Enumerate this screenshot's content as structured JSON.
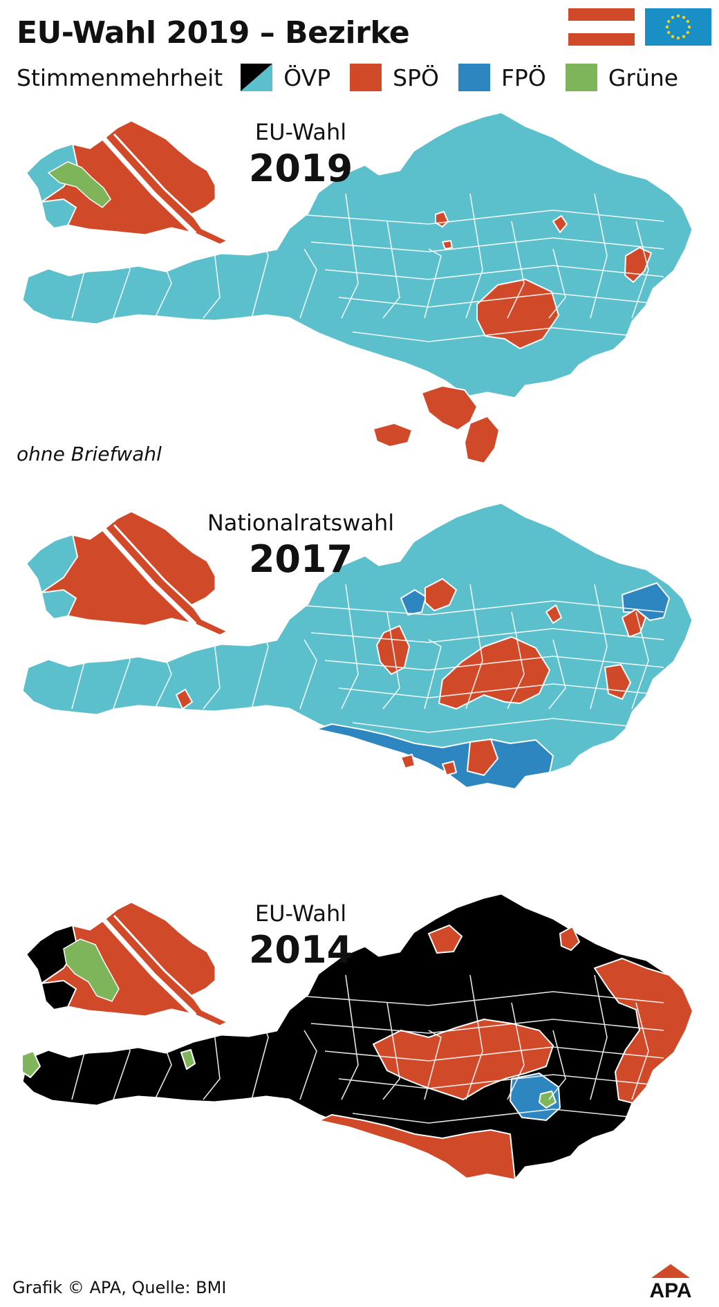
{
  "title": "EU-Wahl 2019 – Bezirke",
  "legend": {
    "label": "Stimmenmehrheit",
    "items": [
      {
        "label": "ÖVP",
        "colors": [
          "#000000",
          "#5bc0cb"
        ]
      },
      {
        "label": "SPÖ",
        "color": "#d04a2a"
      },
      {
        "label": "FPÖ",
        "color": "#2e86c1"
      },
      {
        "label": "Grüne",
        "color": "#7eb55a"
      }
    ]
  },
  "colors": {
    "oevp_2019": "#5bc0cb",
    "oevp_2014": "#000000",
    "spoe": "#d04a2a",
    "fpoe": "#2e86c1",
    "gruene": "#7eb55a",
    "austria_flag": [
      "#d04a2a",
      "#ffffff",
      "#d04a2a"
    ],
    "eu_flag": "#1a8fc6",
    "eu_stars": "#f3d21a"
  },
  "maps": [
    {
      "title": "EU-Wahl",
      "year": "2019",
      "base": "oevp_2019",
      "note": "ohne Briefwahl"
    },
    {
      "title": "Nationalratswahl",
      "year": "2017",
      "base": "oevp_2019"
    },
    {
      "title": "EU-Wahl",
      "year": "2014",
      "base": "oevp_2014"
    }
  ],
  "credit": "Grafik © APA, Quelle: BMI",
  "logo_text": "APA"
}
